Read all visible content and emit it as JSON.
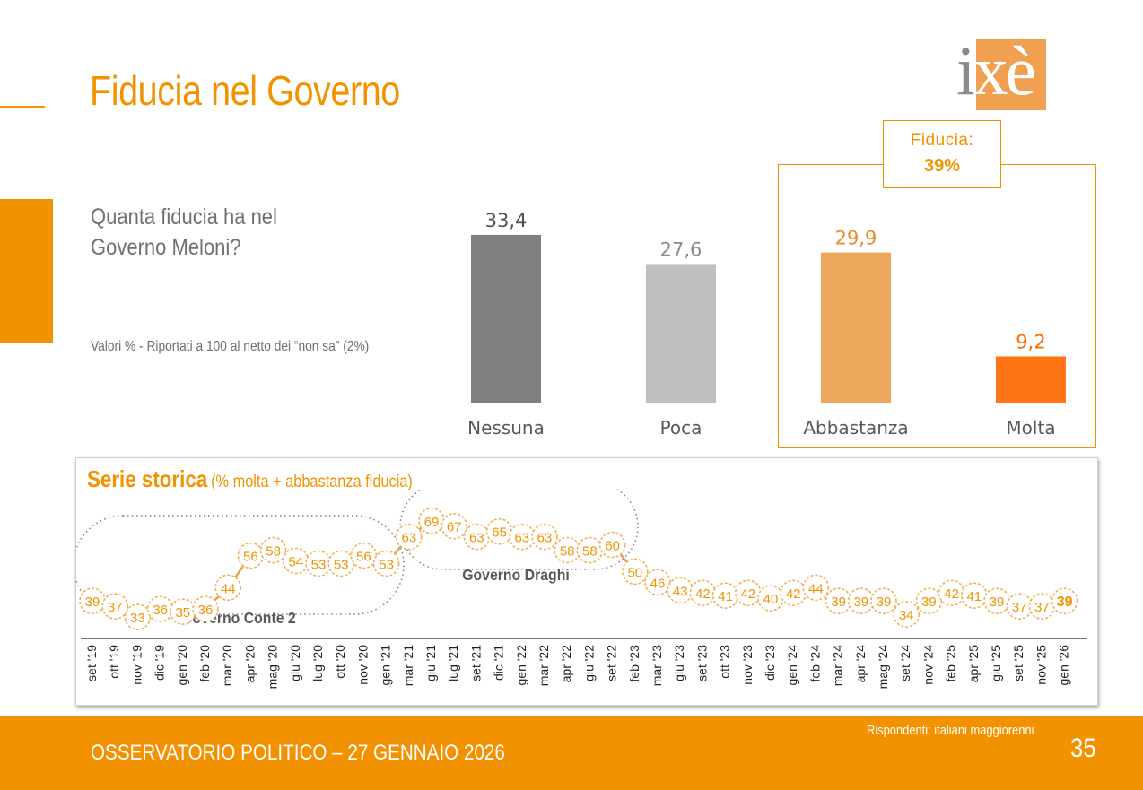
{
  "header": {
    "title": "Fiducia nel Governo",
    "logo": {
      "i": "i",
      "xe": "xè"
    }
  },
  "question": {
    "line1": "Quanta fiducia ha nel",
    "line2": "Governo Meloni?",
    "note": "Valori % - Riportati a 100 al netto dei “non sa” (2%)"
  },
  "fiducia_box": {
    "label": "Fiducia:",
    "value": "39%"
  },
  "colors": {
    "accent": "#f39200",
    "bar_nessuna": "#7f7f7f",
    "bar_poca": "#bfbfbf",
    "bar_abbastanza": "#eda75c",
    "bar_molta": "#ff7415",
    "label_nessuna": "#505050",
    "label_poca": "#8c8c8c",
    "label_abbastanza": "#e88e2c",
    "label_molta": "#ff6a00"
  },
  "serie_storica": {
    "title": "Serie storica",
    "subtitle": "(% molta + abbastanza fiducia)",
    "groups": [
      {
        "label": "Governo Conte 2"
      },
      {
        "label": "Governo Draghi"
      }
    ]
  },
  "footer": {
    "observatory": "OSSERVATORIO POLITICO – 27 GENNAIO 2026",
    "respondents": "Rispondenti: italiani maggiorenni",
    "page": "35"
  },
  "chart_data": [
    {
      "type": "bar",
      "categories": [
        "Nessuna",
        "Poca",
        "Abbastanza",
        "Molta"
      ],
      "values": [
        33.4,
        27.6,
        29.9,
        9.2
      ],
      "value_labels": [
        "33,4",
        "27,6",
        "29,9",
        "9,2"
      ],
      "title": "",
      "xlabel": "",
      "ylabel": ""
    },
    {
      "type": "line",
      "title": "Serie storica",
      "categories": [
        "set '19",
        "ott '19",
        "nov '19",
        "dic '19",
        "gen '20",
        "feb '20",
        "mar '20",
        "apr '20",
        "mag '20",
        "giu '20",
        "lug '20",
        "ott '20",
        "nov '20",
        "gen '21",
        "mar '21",
        "giu '21",
        "lug '21",
        "set '21",
        "dic '21",
        "gen '22",
        "mar '22",
        "apr '22",
        "giu '22",
        "set '22",
        "feb '23",
        "mar '23",
        "giu '23",
        "set '23",
        "ott '23",
        "nov '23",
        "dic '23",
        "gen '24",
        "feb '24",
        "mar '24",
        "apr '24",
        "mag '24",
        "set '24",
        "nov '24",
        "feb '25",
        "apr '25",
        "giu '25",
        "set '25",
        "nov '25",
        "gen '26"
      ],
      "values": [
        39,
        37,
        33,
        36,
        35,
        36,
        44,
        56,
        58,
        54,
        53,
        53,
        56,
        53,
        63,
        69,
        67,
        63,
        65,
        63,
        63,
        58,
        58,
        60,
        50,
        46,
        43,
        42,
        41,
        42,
        40,
        42,
        44,
        39,
        39,
        39,
        34,
        39,
        42,
        41,
        39,
        37,
        37,
        39
      ],
      "ylim": [
        30,
        72
      ]
    }
  ]
}
